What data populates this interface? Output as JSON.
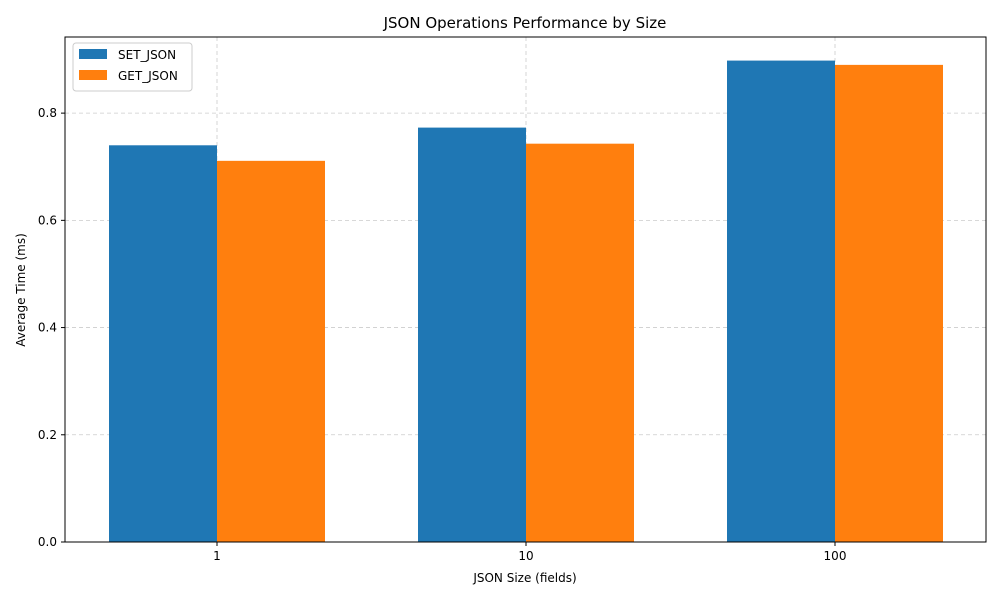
{
  "chart_data": {
    "type": "bar",
    "title": "JSON Operations Performance by Size",
    "xlabel": "JSON Size (fields)",
    "ylabel": "Average Time (ms)",
    "categories": [
      "1",
      "10",
      "100"
    ],
    "series": [
      {
        "name": "SET_JSON",
        "color": "#1f77b4",
        "values": [
          0.74,
          0.773,
          0.898
        ]
      },
      {
        "name": "GET_JSON",
        "color": "#ff7f0e",
        "values": [
          0.711,
          0.743,
          0.89
        ]
      }
    ],
    "ylim": [
      0,
      0.942
    ],
    "yticks": [
      "0.0",
      "0.2",
      "0.4",
      "0.6",
      "0.8"
    ],
    "ytick_values": [
      0,
      0.2,
      0.4,
      0.6,
      0.8
    ],
    "grid": true,
    "legend_position": "top-left"
  }
}
